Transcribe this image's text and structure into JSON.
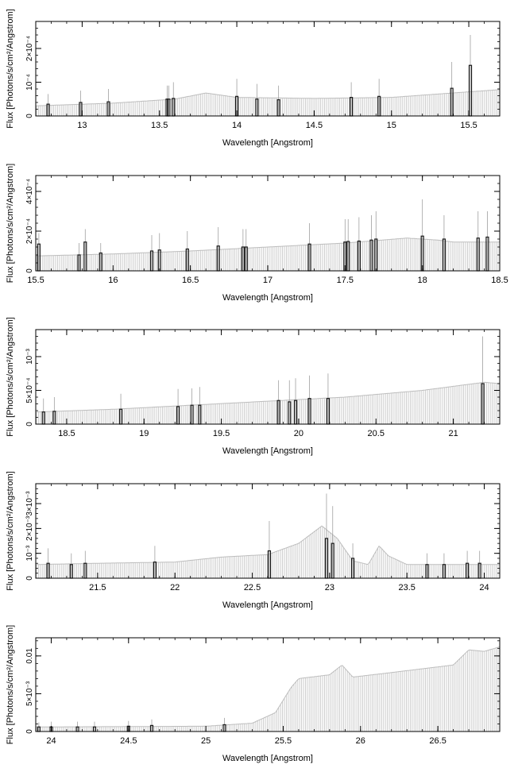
{
  "chart_data": [
    {
      "type": "bar",
      "xlim": [
        12.7,
        15.7
      ],
      "ylim": [
        0,
        0.00028
      ],
      "xticks": [
        {
          "v": 13,
          "t": "13"
        },
        {
          "v": 13.5,
          "t": "13.5"
        },
        {
          "v": 14,
          "t": "14"
        },
        {
          "v": 14.5,
          "t": "14.5"
        },
        {
          "v": 15,
          "t": "15"
        },
        {
          "v": 15.5,
          "t": "15.5"
        }
      ],
      "yticks": [
        {
          "v": 0,
          "t": "0"
        },
        {
          "v": 0.0001,
          "t": "10⁻⁴"
        },
        {
          "v": 0.0002,
          "t": "2×10⁻⁴"
        }
      ],
      "xlabel": "Wavelength [Angstrom]",
      "ylabel": "Flux [Photons/s/cm²/Angstrom]",
      "continuum": [
        [
          12.7,
          3e-05
        ],
        [
          13.2,
          3.8e-05
        ],
        [
          13.6,
          5e-05
        ],
        [
          13.8,
          6.8e-05
        ],
        [
          14.0,
          5.5e-05
        ],
        [
          14.5,
          5.2e-05
        ],
        [
          15.0,
          5.5e-05
        ],
        [
          15.3,
          6.5e-05
        ],
        [
          15.7,
          7.8e-05
        ]
      ],
      "lines": [
        [
          12.78,
          3.5e-05,
          6.5e-05
        ],
        [
          12.99,
          4e-05,
          7.5e-05
        ],
        [
          13.17,
          4.2e-05,
          8e-05
        ],
        [
          13.55,
          5e-05,
          9e-05
        ],
        [
          13.56,
          5e-05,
          9e-05
        ],
        [
          13.59,
          5.2e-05,
          0.0001
        ],
        [
          14.0,
          5.8e-05,
          0.00011
        ],
        [
          14.13,
          5e-05,
          9.5e-05
        ],
        [
          14.27,
          4.8e-05,
          9e-05
        ],
        [
          14.74,
          5.5e-05,
          0.0001
        ],
        [
          14.92,
          5.8e-05,
          0.00011
        ],
        [
          15.39,
          8.2e-05,
          0.00016
        ],
        [
          15.51,
          0.00015,
          0.00024
        ]
      ]
    },
    {
      "type": "bar",
      "xlim": [
        15.5,
        18.5
      ],
      "ylim": [
        0,
        0.00048
      ],
      "xticks": [
        {
          "v": 15.5,
          "t": "15.5"
        },
        {
          "v": 16,
          "t": "16"
        },
        {
          "v": 16.5,
          "t": "16.5"
        },
        {
          "v": 17,
          "t": "17"
        },
        {
          "v": 17.5,
          "t": "17.5"
        },
        {
          "v": 18,
          "t": "18"
        },
        {
          "v": 18.5,
          "t": "18.5"
        }
      ],
      "yticks": [
        {
          "v": 0,
          "t": "0"
        },
        {
          "v": 0.0002,
          "t": "2×10⁻⁴"
        },
        {
          "v": 0.0004,
          "t": "4×10⁻⁴"
        }
      ],
      "xlabel": "Wavelength [Angstrom]",
      "ylabel": "Flux [Photons/s/cm²/Angstrom]",
      "continuum": [
        [
          15.5,
          7.5e-05
        ],
        [
          16.0,
          8.5e-05
        ],
        [
          16.5,
          0.0001
        ],
        [
          17.0,
          0.00012
        ],
        [
          17.5,
          0.00014
        ],
        [
          17.9,
          0.000165
        ],
        [
          18.1,
          0.000155
        ],
        [
          18.2,
          0.000145
        ],
        [
          18.5,
          0.000145
        ]
      ],
      "lines": [
        [
          15.52,
          0.000135,
          0.00019
        ],
        [
          15.78,
          8e-05,
          0.00014
        ],
        [
          15.82,
          0.000145,
          0.00021
        ],
        [
          15.92,
          9e-05,
          0.00014
        ],
        [
          16.25,
          0.0001,
          0.00018
        ],
        [
          16.3,
          0.000105,
          0.00019
        ],
        [
          16.48,
          0.00011,
          0.0002
        ],
        [
          16.68,
          0.000125,
          0.00022
        ],
        [
          16.84,
          0.00012,
          0.00021
        ],
        [
          16.86,
          0.00012,
          0.00021
        ],
        [
          17.27,
          0.000135,
          0.00024
        ],
        [
          17.5,
          0.000145,
          0.00026
        ],
        [
          17.52,
          0.000148,
          0.00026
        ],
        [
          17.59,
          0.00015,
          0.00027
        ],
        [
          17.67,
          0.000155,
          0.00028
        ],
        [
          17.7,
          0.00016,
          0.0003
        ],
        [
          18.0,
          0.000175,
          0.00036
        ],
        [
          18.14,
          0.00016,
          0.00028
        ],
        [
          18.36,
          0.000165,
          0.0003
        ],
        [
          18.42,
          0.00017,
          0.0003
        ]
      ]
    },
    {
      "type": "bar",
      "xlim": [
        18.3,
        21.3
      ],
      "ylim": [
        0,
        0.0014
      ],
      "xticks": [
        {
          "v": 18.5,
          "t": "18.5"
        },
        {
          "v": 19,
          "t": "19"
        },
        {
          "v": 19.5,
          "t": "19.5"
        },
        {
          "v": 20,
          "t": "20"
        },
        {
          "v": 20.5,
          "t": "20.5"
        },
        {
          "v": 21,
          "t": "21"
        }
      ],
      "yticks": [
        {
          "v": 0,
          "t": "0"
        },
        {
          "v": 0.0005,
          "t": "5×10⁻⁴"
        },
        {
          "v": 0.001,
          "t": "10⁻³"
        }
      ],
      "xlabel": "Wavelength [Angstrom]",
      "ylabel": "Flux [Photons/s/cm²/Angstrom]",
      "continuum": [
        [
          18.3,
          0.00018
        ],
        [
          18.8,
          0.00022
        ],
        [
          19.3,
          0.00028
        ],
        [
          19.8,
          0.00034
        ],
        [
          20.3,
          0.0004
        ],
        [
          20.8,
          0.0005
        ],
        [
          21.0,
          0.00056
        ],
        [
          21.2,
          0.00062
        ],
        [
          21.3,
          0.0006
        ]
      ],
      "lines": [
        [
          18.35,
          0.00018,
          0.00038
        ],
        [
          18.42,
          0.00019,
          0.0004
        ],
        [
          18.85,
          0.00022,
          0.00045
        ],
        [
          19.22,
          0.00026,
          0.00052
        ],
        [
          19.31,
          0.00028,
          0.00053
        ],
        [
          19.36,
          0.00028,
          0.00055
        ],
        [
          19.87,
          0.00035,
          0.00065
        ],
        [
          19.94,
          0.00033,
          0.00065
        ],
        [
          19.98,
          0.00035,
          0.00068
        ],
        [
          20.07,
          0.00038,
          0.00072
        ],
        [
          20.19,
          0.00038,
          0.00075
        ],
        [
          21.19,
          0.0006,
          0.0013
        ]
      ]
    },
    {
      "type": "bar",
      "xlim": [
        21.1,
        24.1
      ],
      "ylim": [
        0,
        0.0038
      ],
      "xticks": [
        {
          "v": 21.5,
          "t": "21.5"
        },
        {
          "v": 22,
          "t": "22"
        },
        {
          "v": 22.5,
          "t": "22.5"
        },
        {
          "v": 23,
          "t": "23"
        },
        {
          "v": 23.5,
          "t": "23.5"
        },
        {
          "v": 24,
          "t": "24"
        }
      ],
      "yticks": [
        {
          "v": 0,
          "t": "0"
        },
        {
          "v": 0.001,
          "t": "10⁻³"
        },
        {
          "v": 0.002,
          "t": "2×10⁻³"
        },
        {
          "v": 0.003,
          "t": "3×10⁻³"
        }
      ],
      "xlabel": "Wavelength [Angstrom]",
      "ylabel": "Flux [Photons/s/cm²/Angstrom]",
      "continuum": [
        [
          21.1,
          0.00055
        ],
        [
          21.5,
          0.0006
        ],
        [
          22.0,
          0.00065
        ],
        [
          22.3,
          0.00085
        ],
        [
          22.6,
          0.00095
        ],
        [
          22.8,
          0.0014
        ],
        [
          22.95,
          0.0021
        ],
        [
          23.05,
          0.0016
        ],
        [
          23.15,
          0.0007
        ],
        [
          23.25,
          0.00055
        ],
        [
          23.32,
          0.0013
        ],
        [
          23.38,
          0.0009
        ],
        [
          23.5,
          0.00055
        ],
        [
          23.8,
          0.00055
        ],
        [
          24.1,
          0.00055
        ]
      ],
      "lines": [
        [
          21.18,
          0.0006,
          0.0012
        ],
        [
          21.33,
          0.00055,
          0.001
        ],
        [
          21.42,
          0.0006,
          0.0011
        ],
        [
          21.87,
          0.00065,
          0.0013
        ],
        [
          22.61,
          0.0011,
          0.0023
        ],
        [
          22.98,
          0.0016,
          0.0034
        ],
        [
          23.02,
          0.0014,
          0.0029
        ],
        [
          23.15,
          0.0008,
          0.0014
        ],
        [
          23.63,
          0.00055,
          0.001
        ],
        [
          23.74,
          0.00055,
          0.001
        ],
        [
          23.89,
          0.0006,
          0.0011
        ],
        [
          23.97,
          0.0006,
          0.0011
        ]
      ]
    },
    {
      "type": "bar",
      "xlim": [
        23.9,
        26.9
      ],
      "ylim": [
        0,
        0.0124
      ],
      "xticks": [
        {
          "v": 24,
          "t": "24"
        },
        {
          "v": 24.5,
          "t": "24.5"
        },
        {
          "v": 25,
          "t": "25"
        },
        {
          "v": 25.5,
          "t": "25.5"
        },
        {
          "v": 26,
          "t": "26"
        },
        {
          "v": 26.5,
          "t": "26.5"
        }
      ],
      "yticks": [
        {
          "v": 0,
          "t": "0"
        },
        {
          "v": 0.005,
          "t": "5×10⁻³"
        },
        {
          "v": 0.01,
          "t": "0.01"
        }
      ],
      "xlabel": "Wavelength [Angstrom]",
      "ylabel": "Flux [Photons/s/cm²/Angstrom]",
      "continuum": [
        [
          23.9,
          0.0006
        ],
        [
          24.5,
          0.00065
        ],
        [
          25.0,
          0.0007
        ],
        [
          25.3,
          0.0011
        ],
        [
          25.45,
          0.0025
        ],
        [
          25.55,
          0.0058
        ],
        [
          25.6,
          0.007
        ],
        [
          25.8,
          0.0075
        ],
        [
          25.88,
          0.0088
        ],
        [
          25.95,
          0.0072
        ],
        [
          26.2,
          0.0078
        ],
        [
          26.6,
          0.0088
        ],
        [
          26.7,
          0.0108
        ],
        [
          26.8,
          0.0106
        ],
        [
          26.9,
          0.0112
        ]
      ],
      "lines": [
        [
          23.92,
          0.0006,
          0.0012
        ],
        [
          24.0,
          0.0006,
          0.0013
        ],
        [
          24.17,
          0.0006,
          0.0013
        ],
        [
          24.28,
          0.0006,
          0.0013
        ],
        [
          24.5,
          0.0007,
          0.0014
        ],
        [
          24.65,
          0.0008,
          0.0016
        ],
        [
          25.12,
          0.0009,
          0.0018
        ]
      ]
    }
  ]
}
